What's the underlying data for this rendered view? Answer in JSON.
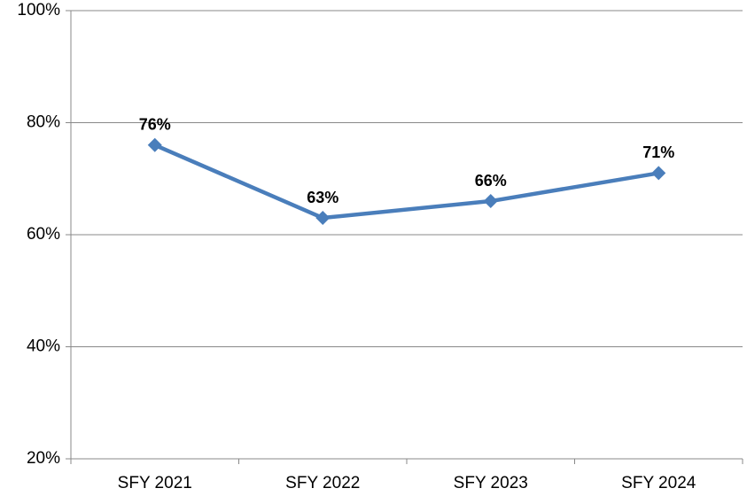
{
  "chart_data": {
    "type": "line",
    "categories": [
      "SFY 2021",
      "SFY 2022",
      "SFY 2023",
      "SFY 2024"
    ],
    "series": [
      {
        "name": null,
        "color": "#4a7ebb",
        "values": [
          76,
          63,
          66,
          71
        ],
        "value_labels": [
          "76%",
          "63%",
          "66%",
          "71%"
        ]
      }
    ],
    "ylim": [
      20,
      100
    ],
    "yticks": [
      {
        "value": 20,
        "label": "20%"
      },
      {
        "value": 40,
        "label": "40%"
      },
      {
        "value": 60,
        "label": "60%"
      },
      {
        "value": 80,
        "label": "80%"
      },
      {
        "value": 100,
        "label": "100%"
      }
    ],
    "grid": true
  }
}
